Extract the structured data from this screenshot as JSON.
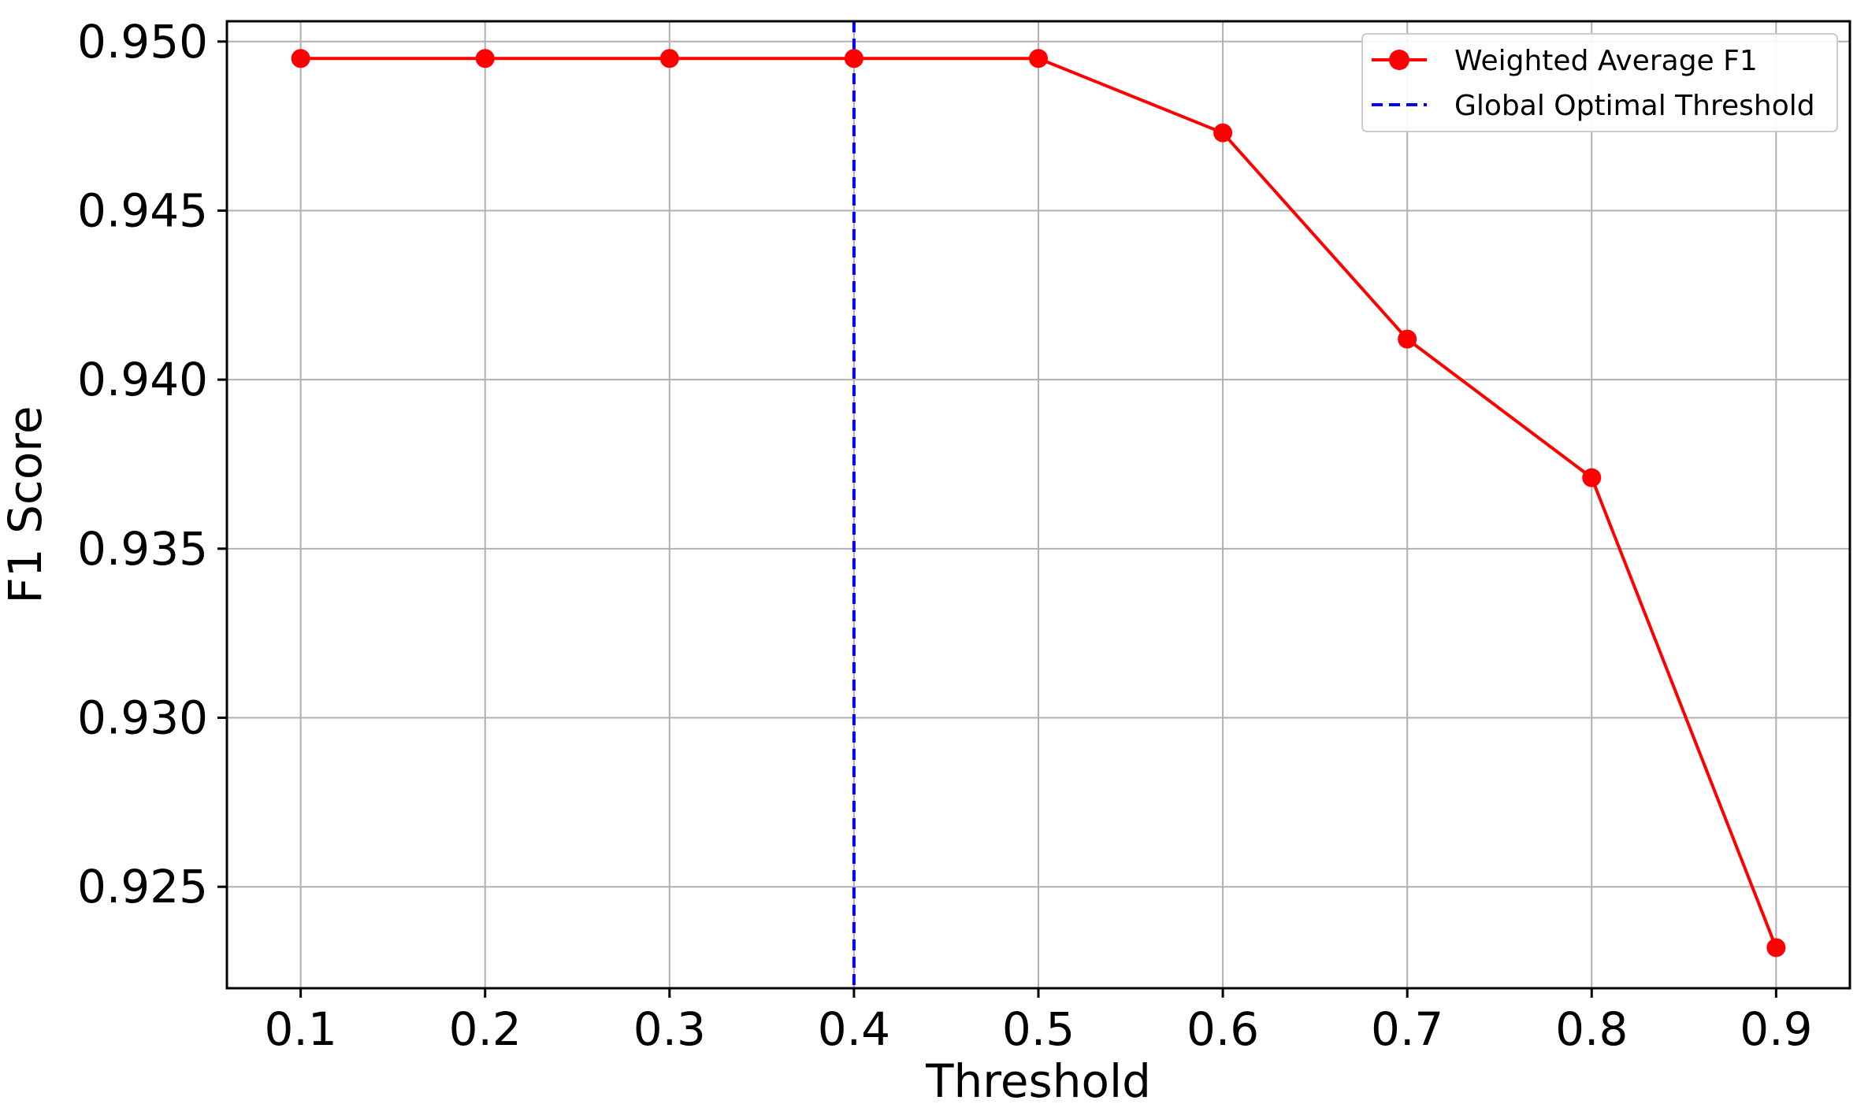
{
  "chart_data": {
    "type": "line",
    "title": "",
    "xlabel": "Threshold",
    "ylabel": "F1 Score",
    "x": [
      0.1,
      0.2,
      0.3,
      0.4,
      0.5,
      0.6,
      0.7,
      0.8,
      0.9
    ],
    "x_tick_labels": [
      "0.1",
      "0.2",
      "0.3",
      "0.4",
      "0.5",
      "0.6",
      "0.7",
      "0.8",
      "0.9"
    ],
    "y_ticks": [
      0.925,
      0.93,
      0.935,
      0.94,
      0.945,
      0.95
    ],
    "y_tick_labels": [
      "0.925",
      "0.930",
      "0.935",
      "0.940",
      "0.945",
      "0.950"
    ],
    "xlim": [
      0.06,
      0.94
    ],
    "ylim": [
      0.922,
      0.9506
    ],
    "grid": true,
    "legend_position": "top-right",
    "series": [
      {
        "name": "Weighted Average F1",
        "color": "#ff0000",
        "marker": "circle",
        "values": [
          0.9495,
          0.9495,
          0.9495,
          0.9495,
          0.9495,
          0.9473,
          0.9412,
          0.9371,
          0.9232
        ]
      }
    ],
    "reference_lines": [
      {
        "name": "Global Optimal Threshold",
        "orientation": "vertical",
        "x": 0.4,
        "color": "#0000ff",
        "style": "dashed"
      }
    ]
  }
}
